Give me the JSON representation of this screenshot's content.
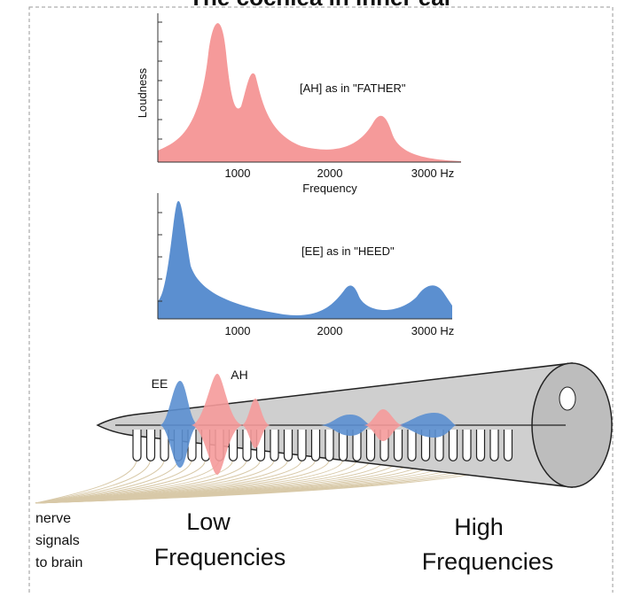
{
  "title": "The cochlea in inner ear",
  "ah_spectrum": {
    "y_label": "Loudness",
    "label": "[AH] as in \"FATHER\"",
    "x_ticks": [
      "1000",
      "2000",
      "3000 Hz"
    ],
    "x_label": "Frequency"
  },
  "ee_spectrum": {
    "label": "[EE] as in \"HEED\"",
    "x_ticks": [
      "1000",
      "2000",
      "3000 Hz"
    ]
  },
  "cochlea": {
    "wave_labels": [
      "EE",
      "AH"
    ],
    "nerve_label": [
      "nerve",
      "signals",
      "to brain"
    ],
    "low": [
      "Low",
      "Frequencies"
    ],
    "high": [
      "High",
      "Frequencies"
    ]
  }
}
